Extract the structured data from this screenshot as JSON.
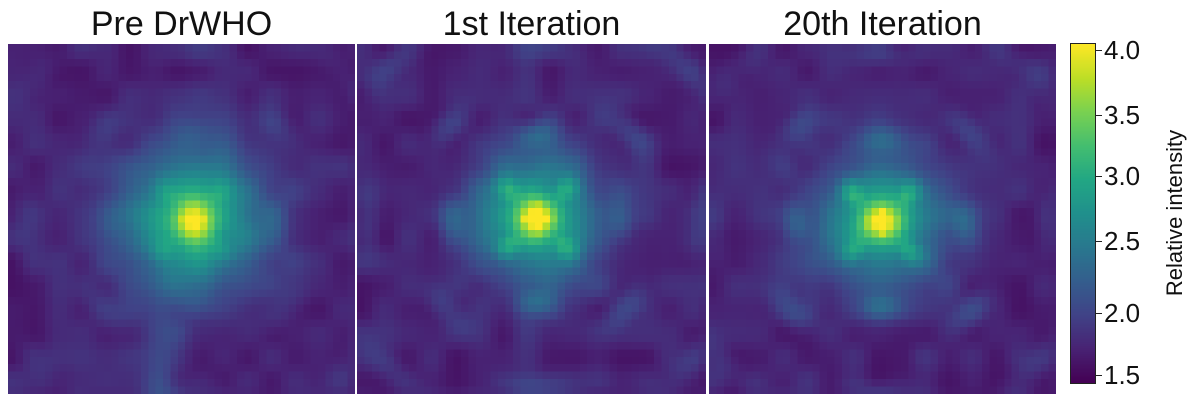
{
  "chart_data": {
    "type": "heatmap",
    "panels": [
      {
        "title": "Pre DrWHO",
        "peak_intensity": 4.0
      },
      {
        "title": "1st Iteration",
        "peak_intensity": 4.0
      },
      {
        "title": "20th Iteration",
        "peak_intensity": 4.0
      }
    ],
    "colorbar": {
      "label": "Relative intensity",
      "range": [
        1.5,
        4.0
      ],
      "ticks": [
        "1.5",
        "2.0",
        "2.5",
        "3.0",
        "3.5",
        "4.0"
      ],
      "colormap": "viridis"
    }
  }
}
